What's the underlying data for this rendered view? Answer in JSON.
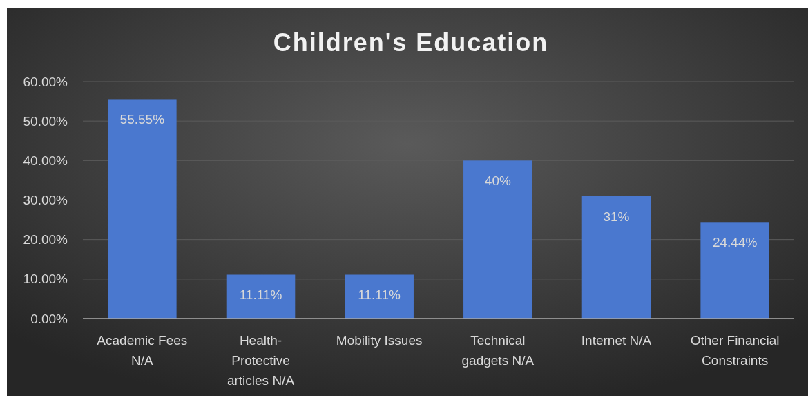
{
  "chart_data": {
    "type": "bar",
    "title": "Children's Education",
    "categories": [
      "Academic Fees N/A",
      "Health-Protective articles N/A",
      "Mobility Issues",
      "Technical gadgets N/A",
      "Internet N/A",
      "Other Financial Constraints"
    ],
    "values": [
      55.55,
      11.11,
      11.11,
      40,
      31,
      24.44
    ],
    "value_labels": [
      "55.55%",
      "11.11%",
      "11.11%",
      "40%",
      "31%",
      "24.44%"
    ],
    "color": "#4a78cf",
    "ylim": [
      0,
      60
    ],
    "yticks": [
      {
        "value": 0,
        "label": "0.00%"
      },
      {
        "value": 10,
        "label": "10.00%"
      },
      {
        "value": 20,
        "label": "20.00%"
      },
      {
        "value": 30,
        "label": "30.00%"
      },
      {
        "value": 40,
        "label": "40.00%"
      },
      {
        "value": 50,
        "label": "50.00%"
      },
      {
        "value": 60,
        "label": "60.00%"
      }
    ],
    "grid": "y"
  }
}
